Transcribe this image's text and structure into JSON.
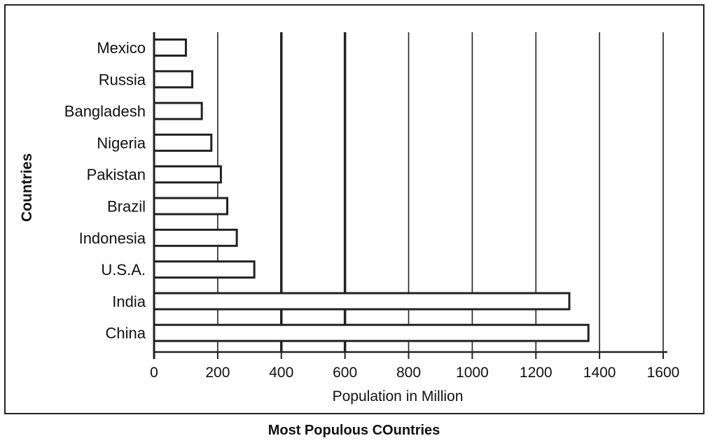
{
  "caption": "Most Populous COuntries",
  "chart_data": {
    "type": "bar",
    "orientation": "horizontal",
    "title": "",
    "xlabel": "Population in Million",
    "ylabel": "Countries",
    "categories": [
      "Mexico",
      "Russia",
      "Bangladesh",
      "Nigeria",
      "Pakistan",
      "Brazil",
      "Indonesia",
      "U.S.A.",
      "India",
      "China"
    ],
    "values": [
      100,
      120,
      150,
      180,
      210,
      230,
      260,
      315,
      1305,
      1365
    ],
    "xlim": [
      0,
      1600
    ],
    "xticks": [
      0,
      200,
      400,
      600,
      800,
      1000,
      1200,
      1400,
      1600
    ],
    "grid": true,
    "legend": "none",
    "bar_color": "#ffffff",
    "edge_color": "#222222"
  }
}
